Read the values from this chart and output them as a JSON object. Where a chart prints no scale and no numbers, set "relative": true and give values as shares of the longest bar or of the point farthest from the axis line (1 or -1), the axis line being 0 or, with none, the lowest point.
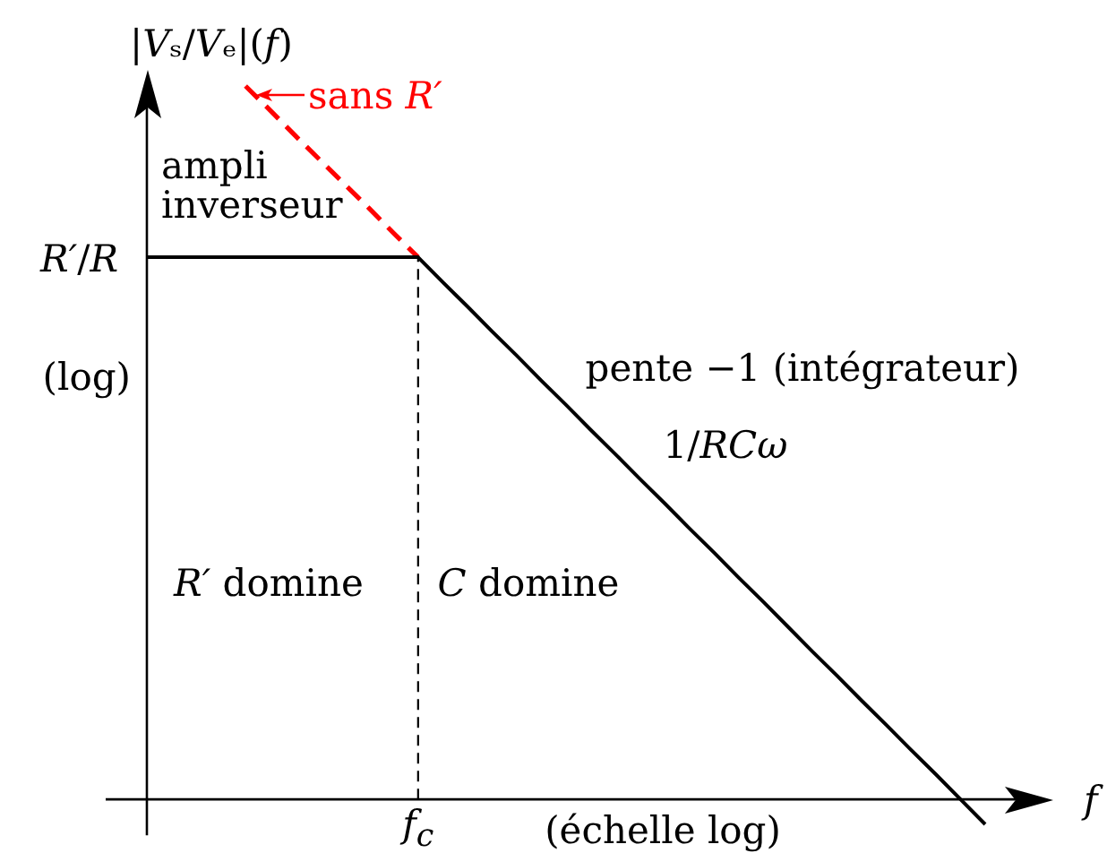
{
  "chart_data": {
    "type": "line",
    "relative": true,
    "ylabel": "|Vₛ/Vₑ|(f)",
    "xlabel": "f",
    "marker": "none",
    "categories": [
      null,
      null,
      null,
      null,
      null,
      null,
      null,
      null,
      null,
      null,
      null,
      null,
      null,
      null,
      null,
      null,
      null,
      null,
      null,
      null,
      null,
      null,
      null,
      null,
      null,
      null,
      null,
      null,
      null,
      null,
      null,
      null,
      null,
      null,
      null
    ],
    "series": [
      {
        "color": "#000000",
        "line_style": "solid",
        "values": [
          0.76,
          0.76,
          0.76,
          0.76,
          0.76,
          0.76,
          0.76,
          0.76,
          0.76,
          0.76,
          0.76,
          0.76,
          0.725,
          0.691,
          0.656,
          0.622,
          0.587,
          0.553,
          0.518,
          0.484,
          0.449,
          0.415,
          0.38,
          0.346,
          0.311,
          0.277,
          0.242,
          0.207,
          0.173,
          0.138,
          0.104,
          0.069,
          0.035,
          0,
          -0.035
        ]
      },
      {
        "color": "#ff0000",
        "line_style": "dashed",
        "values": [
          null,
          null,
          null,
          null,
          1,
          0.966,
          0.931,
          0.897,
          0.863,
          0.829,
          0.794,
          0.76,
          null,
          null,
          null,
          null,
          null,
          null,
          null,
          null,
          null,
          null,
          null,
          null,
          null,
          null,
          null,
          null,
          null,
          null,
          null,
          null,
          null,
          null,
          null
        ]
      }
    ],
    "annotations": [
      "R′/R",
      "sans R′",
      "ampli\ninverseur",
      "pente −1 (intégrateur)",
      "1/RCω",
      "R′ domine",
      "C domine",
      "f$_{c}$",
      "(log)",
      "(échelle log)"
    ]
  }
}
